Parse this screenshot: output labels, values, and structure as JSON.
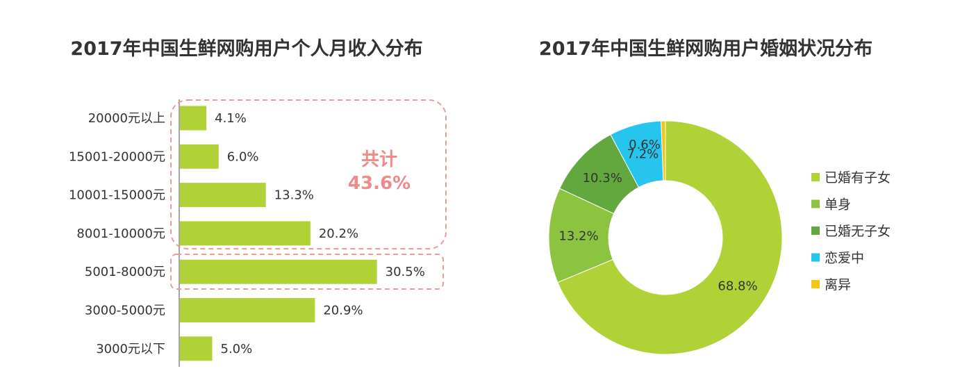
{
  "chart_data": [
    {
      "type": "bar",
      "orientation": "horizontal",
      "title": "2017年中国生鲜网购用户个人月收入分布",
      "categories": [
        "20000元以上",
        "15001-20000元",
        "10001-15000元",
        "8001-10000元",
        "5001-8000元",
        "3000-5000元",
        "3000元以下"
      ],
      "values": [
        4.1,
        6.0,
        13.3,
        20.2,
        30.5,
        20.9,
        5.0
      ],
      "value_labels": [
        "4.1%",
        "6.0%",
        "13.3%",
        "20.2%",
        "30.5%",
        "20.9%",
        "5.0%"
      ],
      "color": "#b0d236",
      "annotation": {
        "label": "共计",
        "value": "43.6%",
        "group": [
          "20000元以上",
          "15001-20000元",
          "10001-15000元",
          "8001-10000元"
        ],
        "color": "#ef8a8a"
      },
      "highlight": [
        "5001-8000元"
      ]
    },
    {
      "type": "pie",
      "donut": true,
      "title": "2017年中国生鲜网购用户婚姻状况分布",
      "slices": [
        {
          "label": "已婚有子女",
          "value": 68.8,
          "text": "68.8%",
          "color": "#b0d236"
        },
        {
          "label": "单身",
          "value": 13.2,
          "text": "13.2%",
          "color": "#8cc43f"
        },
        {
          "label": "已婚无子女",
          "value": 10.3,
          "text": "10.3%",
          "color": "#62a83e"
        },
        {
          "label": "恋爱中",
          "value": 7.2,
          "text": "7.2%",
          "color": "#26c5ee"
        },
        {
          "label": "离异",
          "value": 0.6,
          "text": "0.6%",
          "color": "#f5c518"
        }
      ],
      "legend_position": "right"
    }
  ]
}
